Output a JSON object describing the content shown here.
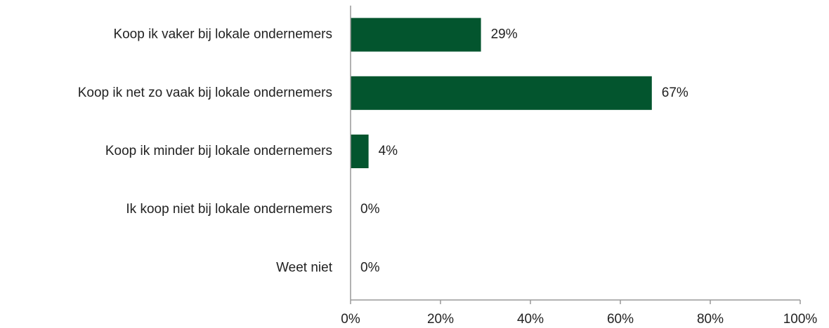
{
  "chart_data": {
    "type": "hbar",
    "categories": [
      "Koop ik vaker bij lokale ondernemers",
      "Koop ik net zo vaak bij lokale ondernemers",
      "Koop ik minder bij lokale ondernemers",
      "Ik koop niet bij lokale ondernemers",
      "Weet niet"
    ],
    "values": [
      29,
      67,
      4,
      0,
      0
    ],
    "value_labels": [
      "29%",
      "67%",
      "4%",
      "0%",
      "0%"
    ],
    "color": "#03552e",
    "xlim": [
      0,
      100
    ],
    "xticks": [
      {
        "value": 0,
        "label": "0%"
      },
      {
        "value": 20,
        "label": "20%"
      },
      {
        "value": 40,
        "label": "40%"
      },
      {
        "value": 60,
        "label": "60%"
      },
      {
        "value": 80,
        "label": "80%"
      },
      {
        "value": 100,
        "label": "100%"
      }
    ],
    "grid": false
  }
}
